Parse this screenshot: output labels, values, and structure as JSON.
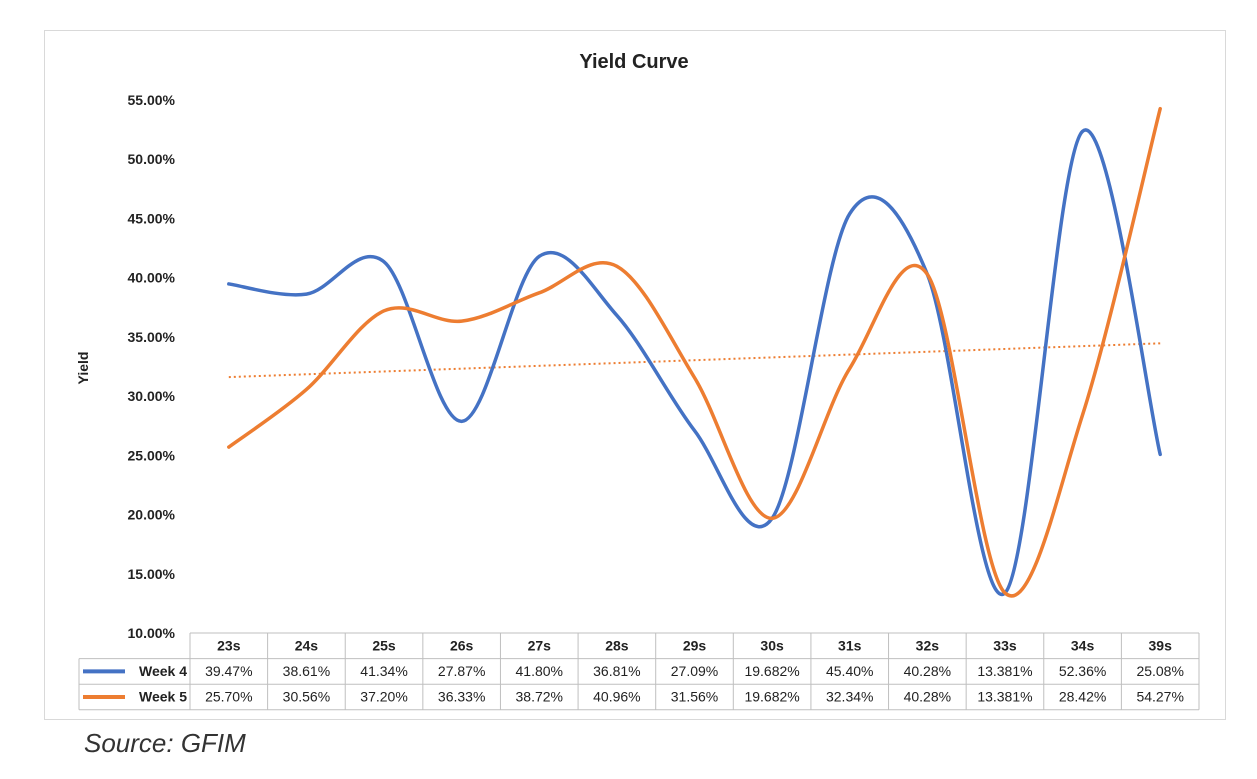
{
  "chart_data": {
    "type": "line",
    "title": "Yield Curve",
    "ylabel": "Yield",
    "xlabel": "",
    "ylim": [
      10,
      55
    ],
    "yticks": [
      10,
      15,
      20,
      25,
      30,
      35,
      40,
      45,
      50,
      55
    ],
    "ytick_labels": [
      "10.00%",
      "15.00%",
      "20.00%",
      "25.00%",
      "30.00%",
      "35.00%",
      "40.00%",
      "45.00%",
      "50.00%",
      "55.00%"
    ],
    "categories": [
      "23s",
      "24s",
      "25s",
      "26s",
      "27s",
      "28s",
      "29s",
      "30s",
      "31s",
      "32s",
      "33s",
      "34s",
      "39s"
    ],
    "series": [
      {
        "name": "Week 4",
        "color": "#4472C4",
        "values": [
          39.47,
          38.61,
          41.34,
          27.87,
          41.8,
          36.81,
          27.09,
          19.682,
          45.4,
          40.28,
          13.381,
          52.36,
          25.08
        ],
        "labels": [
          "39.47%",
          "38.61%",
          "41.34%",
          "27.87%",
          "41.80%",
          "36.81%",
          "27.09%",
          "19.682%",
          "45.40%",
          "40.28%",
          "13.381%",
          "52.36%",
          "25.08%"
        ]
      },
      {
        "name": "Week 5",
        "color": "#ED7D31",
        "values": [
          25.7,
          30.56,
          37.2,
          36.33,
          38.72,
          40.96,
          31.56,
          19.682,
          32.34,
          40.28,
          13.381,
          28.42,
          54.27
        ],
        "labels": [
          "25.70%",
          "30.56%",
          "37.20%",
          "36.33%",
          "38.72%",
          "40.96%",
          "31.56%",
          "19.682%",
          "32.34%",
          "40.28%",
          "13.381%",
          "28.42%",
          "54.27%"
        ]
      }
    ],
    "trendline": {
      "series": "Week 5",
      "kind": "linear",
      "color": "#ED7D31",
      "style": "dotted"
    },
    "data_table": true,
    "grid": false,
    "legend": "data-table"
  },
  "source_note": "Source: GFIM"
}
